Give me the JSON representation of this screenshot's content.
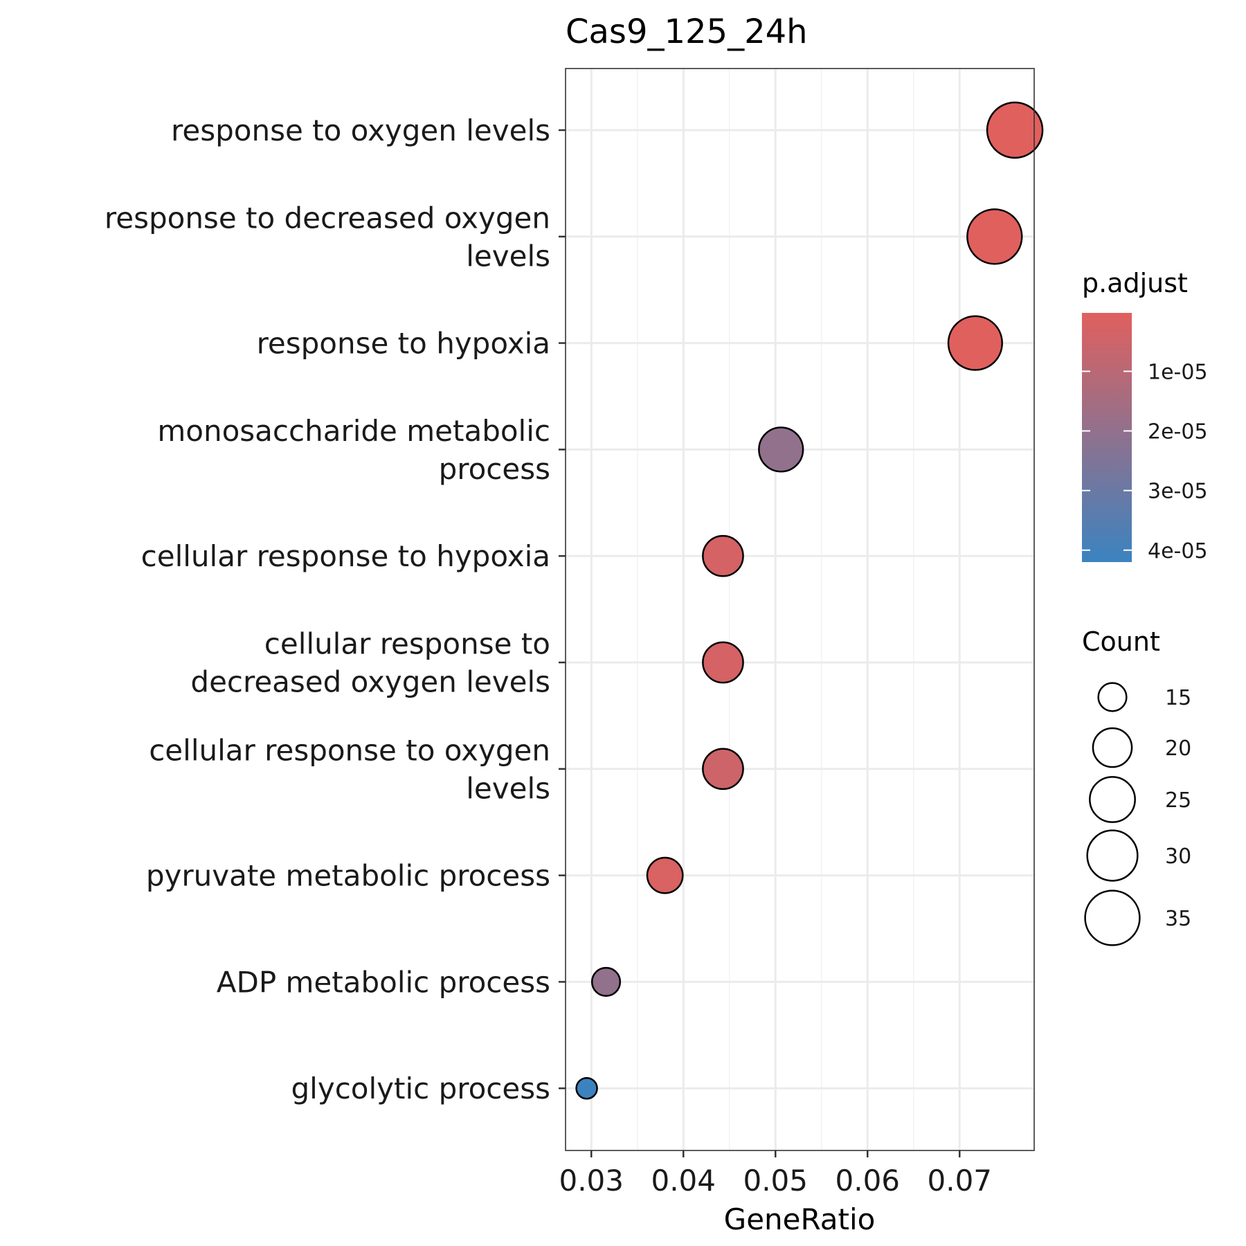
{
  "chart_data": {
    "type": "scatter",
    "title": "Cas9_125_24h",
    "xlabel": "GeneRatio",
    "ylabel": "",
    "xlim": [
      0.0272,
      0.0781
    ],
    "xticks": [
      "0.03",
      "0.04",
      "0.05",
      "0.06",
      "0.07"
    ],
    "xtick_values": [
      0.03,
      0.04,
      0.05,
      0.06,
      0.07
    ],
    "grid": true,
    "points": [
      {
        "term": [
          "response to oxygen levels"
        ],
        "gene_ratio": 0.076,
        "count": 36,
        "p_adjust": 2e-07
      },
      {
        "term": [
          "response to decreased oxygen",
          "levels"
        ],
        "gene_ratio": 0.0738,
        "count": 35,
        "p_adjust": 2e-07
      },
      {
        "term": [
          "response to hypoxia"
        ],
        "gene_ratio": 0.0717,
        "count": 34,
        "p_adjust": 2e-07
      },
      {
        "term": [
          "monosaccharide metabolic",
          "process"
        ],
        "gene_ratio": 0.0506,
        "count": 24,
        "p_adjust": 2e-05
      },
      {
        "term": [
          "cellular response to hypoxia"
        ],
        "gene_ratio": 0.0443,
        "count": 21,
        "p_adjust": 3e-06
      },
      {
        "term": [
          "cellular response to",
          "decreased oxygen levels"
        ],
        "gene_ratio": 0.0443,
        "count": 21,
        "p_adjust": 3e-06
      },
      {
        "term": [
          "cellular response to oxygen",
          "levels"
        ],
        "gene_ratio": 0.0443,
        "count": 21,
        "p_adjust": 5e-06
      },
      {
        "term": [
          "pyruvate metabolic process"
        ],
        "gene_ratio": 0.038,
        "count": 18,
        "p_adjust": 2e-06
      },
      {
        "term": [
          "ADP metabolic process"
        ],
        "gene_ratio": 0.0316,
        "count": 15,
        "p_adjust": 2e-05
      },
      {
        "term": [
          "glycolytic process"
        ],
        "gene_ratio": 0.0295,
        "count": 14,
        "p_adjust": 4.2e-05
      }
    ],
    "color_legend": {
      "title": "p.adjust",
      "range": [
        2e-07,
        4.2e-05
      ],
      "low_color": "#E0605E",
      "high_color": "#3B83C0",
      "breaks": [
        1e-05,
        2e-05,
        3e-05,
        4e-05
      ],
      "labels": [
        "1e-05",
        "2e-05",
        "3e-05",
        "4e-05"
      ]
    },
    "size_legend": {
      "title": "Count",
      "values": [
        15,
        20,
        25,
        30,
        35
      ],
      "labels": [
        "15",
        "20",
        "25",
        "30",
        "35"
      ]
    }
  }
}
